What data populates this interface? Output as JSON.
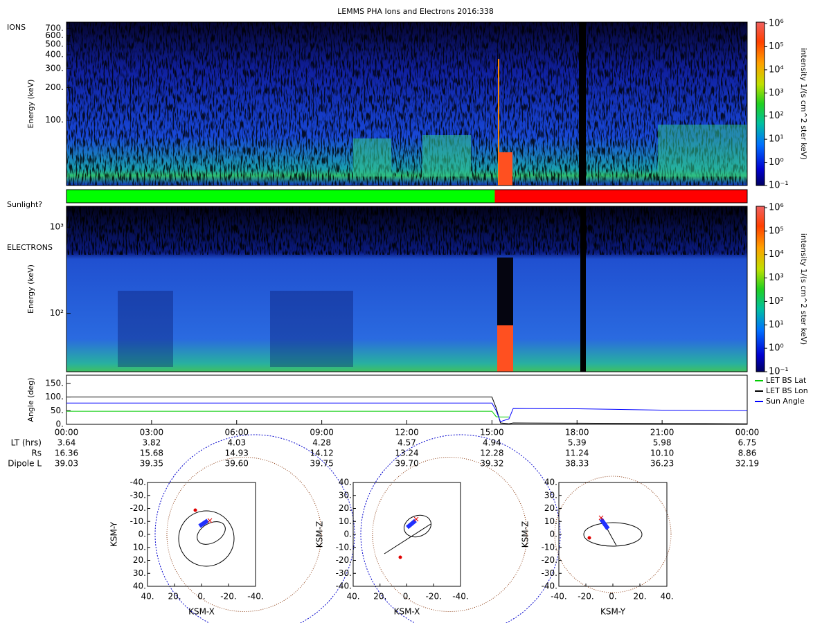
{
  "title": "LEMMS PHA Ions and Electrons  2016:338",
  "chart_data": [
    {
      "type": "spectrogram",
      "label": "IONS",
      "ylabel": "Energy (keV)",
      "log_scale": true,
      "ylim": [
        25,
        800
      ],
      "yticks": [
        {
          "value": 100,
          "label": "100."
        },
        {
          "value": 200,
          "label": "200."
        },
        {
          "value": 300,
          "label": "300."
        },
        {
          "value": 400,
          "label": "400."
        },
        {
          "value": 500,
          "label": "500."
        },
        {
          "value": 600,
          "label": "600."
        },
        {
          "value": 700,
          "label": "700."
        }
      ],
      "colorbar": {
        "label": "intensity 1/(s cm^2 ster keV)",
        "zlim": [
          0.1,
          1000000
        ],
        "ticks": [
          {
            "value": 0.1,
            "label": "10⁻¹"
          },
          {
            "value": 1,
            "label": "10⁰"
          },
          {
            "value": 10,
            "label": "10¹"
          },
          {
            "value": 100,
            "label": "10²"
          },
          {
            "value": 1000,
            "label": "10³"
          },
          {
            "value": 10000,
            "label": "10⁴"
          },
          {
            "value": 100000,
            "label": "10⁵"
          },
          {
            "value": 1000000,
            "label": "10⁶"
          }
        ]
      }
    },
    {
      "type": "timeline",
      "label": "Sunlight?",
      "xlim": [
        0,
        24
      ],
      "segments": [
        {
          "start": 0,
          "end": 15.1,
          "color": "#00ff00"
        },
        {
          "start": 15.1,
          "end": 24,
          "color": "#ff0000"
        }
      ]
    },
    {
      "type": "spectrogram",
      "label": "ELECTRONS",
      "ylabel": "Energy (keV)",
      "log_scale": true,
      "ylim": [
        21,
        1750
      ],
      "yticks": [
        {
          "value": 100,
          "label": "10²"
        },
        {
          "value": 1000,
          "label": "10³"
        }
      ],
      "colorbar": {
        "label": "intensity 1/(s cm^2 ster keV)",
        "zlim": [
          0.1,
          1000000
        ],
        "ticks": [
          {
            "value": 0.1,
            "label": "10⁻¹"
          },
          {
            "value": 1,
            "label": "10⁰"
          },
          {
            "value": 10,
            "label": "10¹"
          },
          {
            "value": 100,
            "label": "10²"
          },
          {
            "value": 1000,
            "label": "10³"
          },
          {
            "value": 10000,
            "label": "10⁴"
          },
          {
            "value": 100000,
            "label": "10⁵"
          },
          {
            "value": 1000000,
            "label": "10⁶"
          }
        ]
      }
    },
    {
      "type": "line",
      "ylabel": "Angle (deg)",
      "ylim": [
        0,
        180
      ],
      "xlim": [
        0,
        24
      ],
      "legend": "right",
      "yticks": [
        {
          "value": 0,
          "label": "0."
        },
        {
          "value": 50,
          "label": "50."
        },
        {
          "value": 100,
          "label": "100."
        },
        {
          "value": 150,
          "label": "150."
        }
      ],
      "xticks": [
        {
          "value": 0,
          "label": "00:00"
        },
        {
          "value": 3,
          "label": "03:00"
        },
        {
          "value": 6,
          "label": "06:00"
        },
        {
          "value": 9,
          "label": "09:00"
        },
        {
          "value": 12,
          "label": "12:00"
        },
        {
          "value": 15,
          "label": "15:00"
        },
        {
          "value": 18,
          "label": "18:00"
        },
        {
          "value": 21,
          "label": "21:00"
        },
        {
          "value": 24,
          "label": "00:00"
        }
      ],
      "x": [
        0,
        15.0,
        15.15,
        15.3,
        15.6,
        15.75,
        18,
        21,
        24
      ],
      "series": [
        {
          "name": "LET BS Lat",
          "color": "#00cc00",
          "values": [
            48,
            48,
            28,
            27,
            27,
            null,
            null,
            null,
            null
          ]
        },
        {
          "name": "LET BS Lon",
          "color": "#000000",
          "values": [
            100,
            100,
            60,
            5,
            2,
            5,
            4,
            3,
            2
          ]
        },
        {
          "name": "Sun Angle",
          "color": "#0000ff",
          "values": [
            78,
            78,
            50,
            10,
            20,
            58,
            57,
            52,
            50
          ]
        }
      ],
      "ephemeris": {
        "rows": [
          {
            "label": "LT (hrs)",
            "values": [
              "3.64",
              "3.82",
              "4.03",
              "4.28",
              "4.57",
              "4.94",
              "5.39",
              "5.98",
              "6.75"
            ]
          },
          {
            "label": "Rs",
            "values": [
              "16.36",
              "15.68",
              "14.93",
              "14.12",
              "13.24",
              "12.28",
              "11.24",
              "10.10",
              "8.86"
            ]
          },
          {
            "label": "Dipole L",
            "values": [
              "39.03",
              "39.35",
              "39.60",
              "39.75",
              "39.70",
              "39.32",
              "38.33",
              "36.23",
              "32.19"
            ]
          }
        ]
      }
    },
    {
      "type": "orbit",
      "xlabel": "KSM-X",
      "ylabel": "KSM-Y",
      "xlim": [
        40,
        -40
      ],
      "ylim": [
        40,
        -40
      ],
      "xticks": [
        {
          "value": 40,
          "label": "40."
        },
        {
          "value": 20,
          "label": "20."
        },
        {
          "value": 0,
          "label": "0."
        },
        {
          "value": -20,
          "label": "-20."
        },
        {
          "value": -40,
          "label": "-40."
        }
      ],
      "yticks": [
        {
          "value": -40,
          "label": "-40."
        },
        {
          "value": -30,
          "label": "-30."
        },
        {
          "value": -20,
          "label": "-20."
        },
        {
          "value": -10,
          "label": "-10."
        },
        {
          "value": 0,
          "label": "0."
        },
        {
          "value": 10,
          "label": "10."
        },
        {
          "value": 20,
          "label": "20."
        },
        {
          "value": 30,
          "label": "30."
        },
        {
          "value": 40,
          "label": "40."
        }
      ]
    },
    {
      "type": "orbit",
      "xlabel": "KSM-X",
      "ylabel": "KSM-Z",
      "xlim": [
        40,
        -40
      ],
      "ylim": [
        -40,
        40
      ],
      "xticks": [
        {
          "value": 40,
          "label": "40."
        },
        {
          "value": 20,
          "label": "20."
        },
        {
          "value": 0,
          "label": "0."
        },
        {
          "value": -20,
          "label": "-20."
        },
        {
          "value": -40,
          "label": "-40."
        }
      ],
      "yticks": [
        {
          "value": -40,
          "label": "-40."
        },
        {
          "value": -30,
          "label": "-30."
        },
        {
          "value": -20,
          "label": "-20."
        },
        {
          "value": -10,
          "label": "-10."
        },
        {
          "value": 0,
          "label": "0."
        },
        {
          "value": 10,
          "label": "10."
        },
        {
          "value": 20,
          "label": "20."
        },
        {
          "value": 30,
          "label": "30."
        },
        {
          "value": 40,
          "label": "40."
        }
      ]
    },
    {
      "type": "orbit",
      "xlabel": "KSM-Y",
      "ylabel": "KSM-Z",
      "xlim": [
        -40,
        40
      ],
      "ylim": [
        -40,
        40
      ],
      "xticks": [
        {
          "value": -40,
          "label": "-40."
        },
        {
          "value": -20,
          "label": "-20."
        },
        {
          "value": 0,
          "label": "0."
        },
        {
          "value": 20,
          "label": "20."
        },
        {
          "value": 40,
          "label": "40."
        }
      ],
      "yticks": [
        {
          "value": -40,
          "label": "-40."
        },
        {
          "value": -30,
          "label": "-30."
        },
        {
          "value": -20,
          "label": "-20."
        },
        {
          "value": -10,
          "label": "-10."
        },
        {
          "value": 0,
          "label": "0."
        },
        {
          "value": 10,
          "label": "10."
        },
        {
          "value": 20,
          "label": "20."
        },
        {
          "value": 30,
          "label": "30."
        },
        {
          "value": 40,
          "label": "40."
        }
      ]
    }
  ]
}
